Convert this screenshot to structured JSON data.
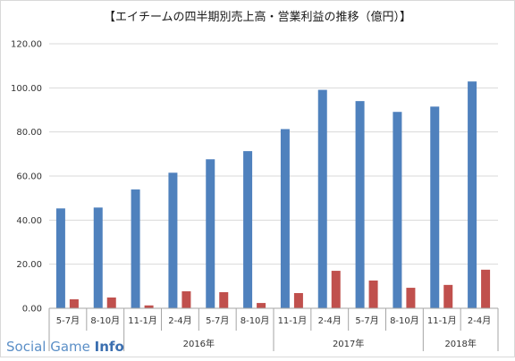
{
  "chart_data": {
    "type": "bar",
    "title": "【エイチームの四半期別売上高・営業利益の推移（億円）】",
    "categories": [
      "5-7月",
      "8-10月",
      "11-1月",
      "2-4月",
      "5-7月",
      "8-10月",
      "11-1月",
      "2-4月",
      "5-7月",
      "8-10月",
      "11-1月",
      "2-4月"
    ],
    "year_groups": [
      {
        "label": "",
        "start": 0,
        "end": 1
      },
      {
        "label": "2016年",
        "start": 2,
        "end": 5
      },
      {
        "label": "2017年",
        "start": 6,
        "end": 9
      },
      {
        "label": "2018年",
        "start": 10,
        "end": 11
      }
    ],
    "series": [
      {
        "values": [
          45.3,
          45.7,
          53.9,
          61.5,
          67.6,
          71.3,
          81.3,
          99.1,
          94.0,
          89.1,
          91.5,
          102.9
        ],
        "color": "#4f81bd"
      },
      {
        "values": [
          4.1,
          4.9,
          1.3,
          7.7,
          7.3,
          2.4,
          6.9,
          17.0,
          12.6,
          9.3,
          10.6,
          17.5
        ],
        "color": "#c0504d"
      }
    ],
    "ylim": [
      0,
      120
    ],
    "yticks": [
      "0.00",
      "20.00",
      "40.00",
      "60.00",
      "80.00",
      "100.00",
      "120.00"
    ],
    "grid": true,
    "xlabel": "",
    "ylabel": ""
  },
  "watermark": {
    "part1": "Social Game ",
    "part2": "Info"
  }
}
